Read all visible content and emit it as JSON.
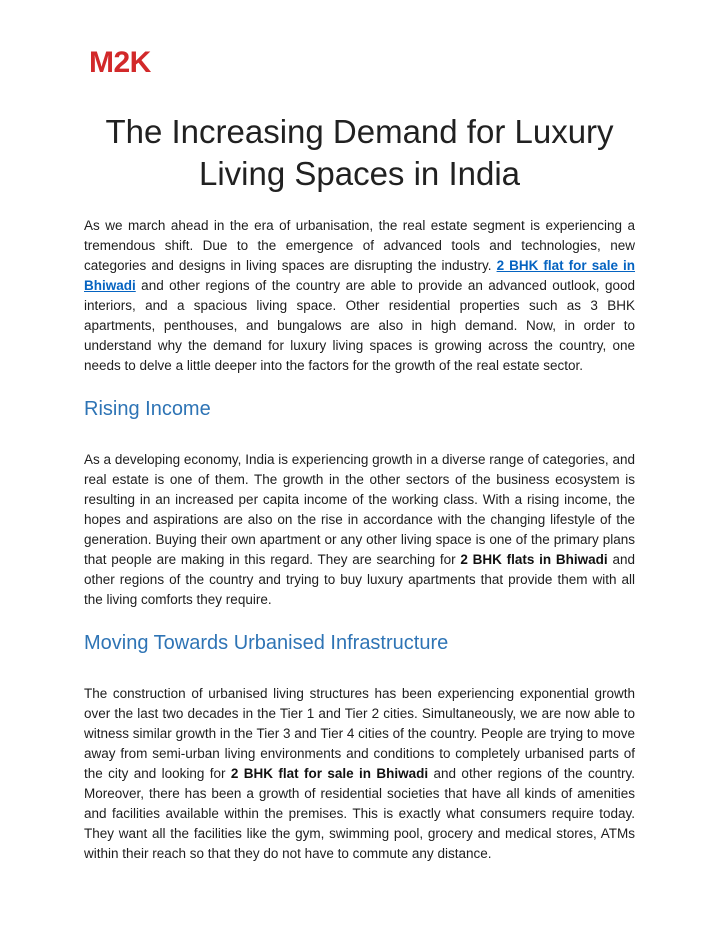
{
  "document": {
    "logo_text": "M2K",
    "title": "The Increasing Demand for Luxury Living Spaces in India",
    "intro": {
      "runs": [
        {
          "text": "As we march ahead in the era of urbanisation, the real estate segment is experiencing a tremendous shift. Due to the emergence of advanced tools and technologies, new categories and designs in living spaces are disrupting the industry. ",
          "style": "plain"
        },
        {
          "text": "2 BHK flat for sale in Bhiwadi",
          "style": "link"
        },
        {
          "text": " and other regions of the country are able to provide an advanced outlook, good interiors, and a spacious living space. Other residential properties such as 3 BHK apartments, penthouses, and bungalows are also in high demand. Now, in order to understand why the demand for luxury living spaces is growing across the country, one needs to delve a little deeper into the factors for the growth of the real estate sector.",
          "style": "plain"
        }
      ]
    },
    "sections": [
      {
        "heading": "Rising Income",
        "paragraph_runs": [
          {
            "text": "As a developing economy, India is experiencing growth in a diverse range of categories, and real estate is one of them. The growth in the other sectors of the business ecosystem is resulting in an increased per capita income of the working class. With a rising income, the hopes and aspirations are also on the rise in accordance with the changing lifestyle of the generation. Buying their own apartment or any other living space is one of the primary plans that people are making in this regard. They are searching for ",
            "style": "plain"
          },
          {
            "text": "2 BHK flats in Bhiwadi",
            "style": "bold"
          },
          {
            "text": " and other regions of the country and trying to buy luxury apartments that provide them with all the living comforts they require.",
            "style": "plain"
          }
        ]
      },
      {
        "heading": "Moving Towards Urbanised Infrastructure",
        "paragraph_runs": [
          {
            "text": "The construction of urbanised living structures has been experiencing exponential growth over the last two decades in the Tier 1 and Tier 2 cities. Simultaneously, we are now able to witness similar growth in the Tier 3 and Tier 4 cities of the country. People are trying to move away from semi-urban living environments and conditions to completely urbanised parts of the city and looking for ",
            "style": "plain"
          },
          {
            "text": "2 BHK flat for sale in Bhiwadi",
            "style": "bold"
          },
          {
            "text": " and other regions of the country. Moreover, there has been a growth of residential societies that have all kinds of amenities and facilities available within the premises. This is exactly what consumers require today. They want all the facilities like the gym, swimming pool, grocery and medical stores, ATMs within their reach so that they do not have to commute any distance.",
            "style": "plain"
          }
        ]
      }
    ]
  },
  "colors": {
    "logo_red": "#D2292A",
    "heading_blue": "#2E74B5",
    "link_blue": "#0563C1",
    "body_text": "#1D1D1D"
  }
}
